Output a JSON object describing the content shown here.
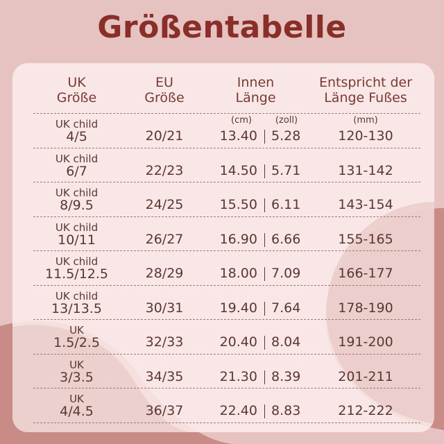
{
  "title": "Größentabelle",
  "colors": {
    "title": "#8a2e2a",
    "background": "#e6c3c0",
    "card": "#faeceb",
    "text": "#5a3632",
    "header_text": "#7a3a34",
    "blob": "#c98b86"
  },
  "table": {
    "headers": {
      "uk": [
        "UK",
        "Größe"
      ],
      "eu": [
        "EU",
        "Größe"
      ],
      "inner": [
        "Innen",
        "Länge"
      ],
      "foot": [
        "Entspricht der",
        "Länge Fußes"
      ]
    },
    "units": {
      "cm": "(cm)",
      "inch": "(zoll)",
      "mm": "(mm)"
    },
    "rows": [
      {
        "uk_type": "UK child",
        "uk_size": "4/5",
        "eu": "20/21",
        "cm": "13.40",
        "inch": "5.28",
        "mm": "120-130"
      },
      {
        "uk_type": "UK child",
        "uk_size": "6/7",
        "eu": "22/23",
        "cm": "14.50",
        "inch": "5.71",
        "mm": "131-142"
      },
      {
        "uk_type": "UK child",
        "uk_size": "8/9.5",
        "eu": "24/25",
        "cm": "15.50",
        "inch": "6.11",
        "mm": "143-154"
      },
      {
        "uk_type": "UK child",
        "uk_size": "10/11",
        "eu": "26/27",
        "cm": "16.90",
        "inch": "6.66",
        "mm": "155-165"
      },
      {
        "uk_type": "UK child",
        "uk_size": "11.5/12.5",
        "eu": "28/29",
        "cm": "18.00",
        "inch": "7.09",
        "mm": "166-177"
      },
      {
        "uk_type": "UK child",
        "uk_size": "13/13.5",
        "eu": "30/31",
        "cm": "19.40",
        "inch": "7.64",
        "mm": "178-190"
      },
      {
        "uk_type": "UK",
        "uk_size": "1.5/2.5",
        "eu": "32/33",
        "cm": "20.40",
        "inch": "8.04",
        "mm": "191-200"
      },
      {
        "uk_type": "UK",
        "uk_size": "3/3.5",
        "eu": "34/35",
        "cm": "21.30",
        "inch": "8.39",
        "mm": "201-211"
      },
      {
        "uk_type": "UK",
        "uk_size": "4/4.5",
        "eu": "36/37",
        "cm": "22.40",
        "inch": "8.83",
        "mm": "212-222"
      }
    ]
  }
}
